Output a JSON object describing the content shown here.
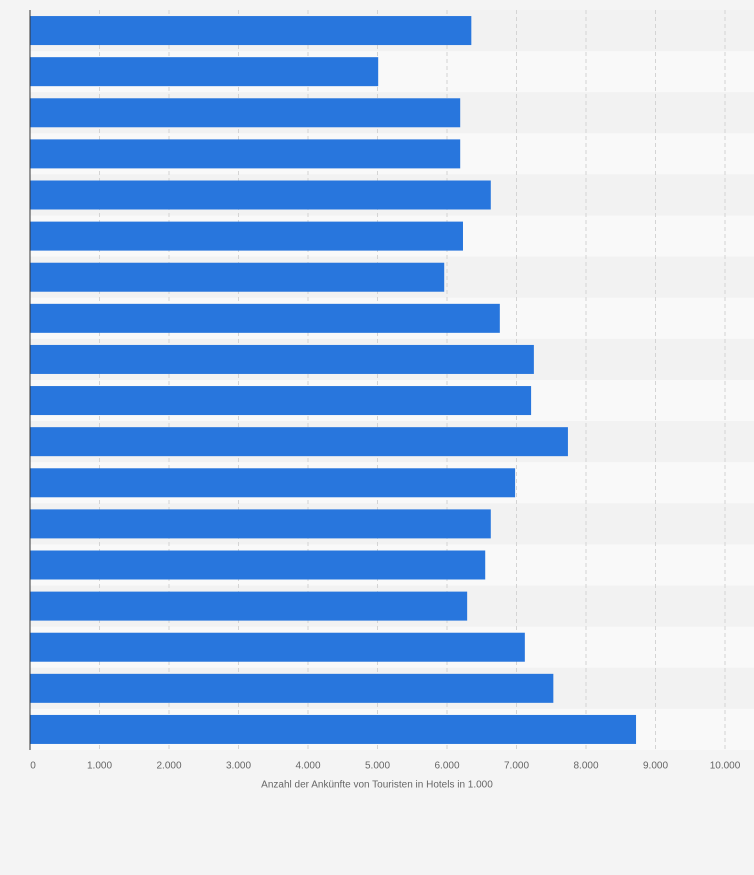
{
  "chart_data": {
    "type": "bar",
    "orientation": "horizontal",
    "x_label": "Anzahl der Ankünfte von Touristen in Hotels in 1.000",
    "categories": [
      null,
      null,
      null,
      null,
      null,
      null,
      null,
      null,
      null,
      null,
      null,
      null,
      null,
      null,
      null,
      null,
      null,
      null
    ],
    "values": [
      6350,
      5010,
      6190,
      6190,
      6630,
      6230,
      5960,
      6760,
      7250,
      7210,
      7740,
      6980,
      6630,
      6550,
      6290,
      7120,
      7530,
      8720
    ],
    "color": "#2876dd",
    "xlim": [
      0,
      10000
    ],
    "xticks": [
      0,
      {
        "value": 1000,
        "label": "1.000"
      },
      {
        "value": 2000,
        "label": "2.000"
      },
      {
        "value": 3000,
        "label": "3.000"
      },
      {
        "value": 4000,
        "label": "4.000"
      },
      {
        "value": 5000,
        "label": "5.000"
      },
      {
        "value": 6000,
        "label": "6.000"
      },
      {
        "value": 7000,
        "label": "7.000"
      },
      {
        "value": 8000,
        "label": "8.000"
      },
      {
        "value": 9000,
        "label": "9.000"
      },
      {
        "value": 10000,
        "label": "10.000"
      }
    ],
    "grid": true
  }
}
